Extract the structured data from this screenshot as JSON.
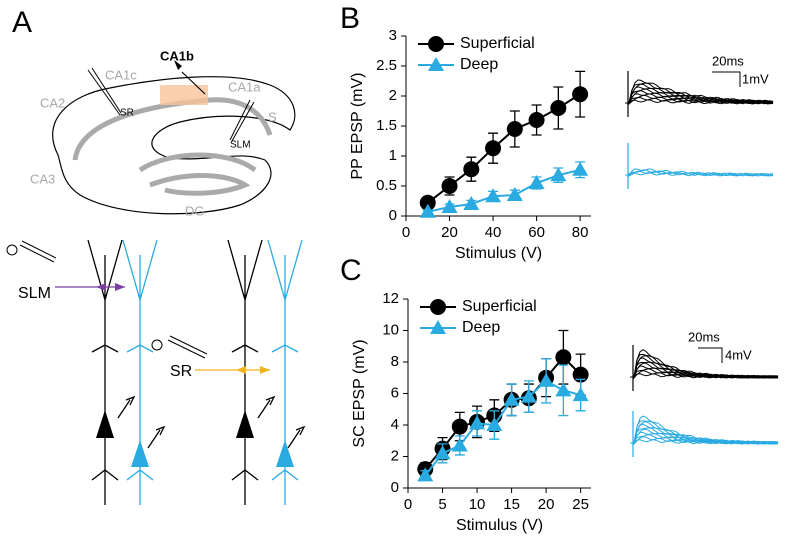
{
  "panel_labels": [
    "A",
    "B",
    "C"
  ],
  "diagram": {
    "region_labels": [
      "CA1b",
      "CA1c",
      "CA1a",
      "CA2",
      "CA3",
      "DG",
      "S",
      "SR",
      "SLM"
    ],
    "pathway_labels": [
      "SLM",
      "SR"
    ]
  },
  "traces": [
    {
      "time_scale": "20ms",
      "amplitude_scale": "1mV"
    },
    {
      "time_scale": "20ms",
      "amplitude_scale": "4mV"
    }
  ],
  "chart_data": [
    {
      "type": "line",
      "xlabel": "Stimulus (V)",
      "ylabel": "PP EPSP (mV)",
      "x": [
        10,
        20,
        30,
        40,
        50,
        60,
        70,
        80
      ],
      "xlim": [
        0,
        85
      ],
      "xticks": [
        0,
        20,
        40,
        60,
        80
      ],
      "ylim": [
        0,
        3
      ],
      "yticks": [
        0,
        0.5,
        1,
        1.5,
        2,
        2.5,
        3
      ],
      "legend": "upper left",
      "series": [
        {
          "name": "Superficial",
          "color": "#000000",
          "marker": "circle",
          "values": [
            0.22,
            0.5,
            0.78,
            1.13,
            1.45,
            1.6,
            1.8,
            2.03
          ],
          "errors": [
            0.08,
            0.15,
            0.2,
            0.25,
            0.3,
            0.25,
            0.35,
            0.38
          ]
        },
        {
          "name": "Deep",
          "color": "#29abe2",
          "marker": "triangle",
          "values": [
            0.07,
            0.15,
            0.2,
            0.33,
            0.35,
            0.55,
            0.68,
            0.77
          ],
          "errors": [
            0.03,
            0.05,
            0.06,
            0.08,
            0.08,
            0.1,
            0.12,
            0.13
          ]
        }
      ]
    },
    {
      "type": "line",
      "xlabel": "Stimulus (V)",
      "ylabel": "SC EPSP (mV)",
      "x": [
        2.5,
        5,
        7.5,
        10,
        12.5,
        15,
        17.5,
        20,
        22.5,
        25
      ],
      "xlim": [
        0,
        26.5
      ],
      "xticks": [
        0,
        5,
        10,
        15,
        20,
        25
      ],
      "ylim": [
        0,
        12
      ],
      "yticks": [
        0,
        2,
        4,
        6,
        8,
        10,
        12
      ],
      "legend": "upper left",
      "series": [
        {
          "name": "Superficial",
          "color": "#000000",
          "marker": "circle",
          "values": [
            1.2,
            2.5,
            3.9,
            4.2,
            4.6,
            5.6,
            5.7,
            7.0,
            8.3,
            7.2
          ],
          "errors": [
            0.4,
            0.7,
            0.9,
            1.0,
            1.0,
            1.0,
            0.9,
            1.2,
            1.7,
            1.3
          ]
        },
        {
          "name": "Deep",
          "color": "#29abe2",
          "marker": "triangle",
          "values": [
            0.8,
            2.2,
            2.7,
            4.1,
            4.0,
            5.6,
            5.8,
            6.8,
            6.2,
            5.9
          ],
          "errors": [
            0.3,
            0.6,
            0.6,
            0.8,
            0.9,
            1.0,
            1.0,
            1.4,
            1.6,
            1.0
          ]
        }
      ]
    }
  ]
}
